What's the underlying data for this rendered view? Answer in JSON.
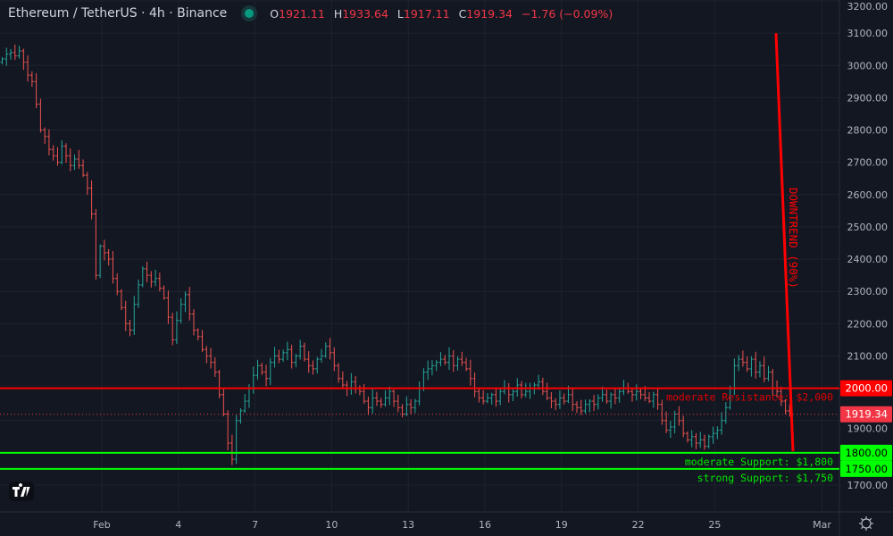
{
  "header": {
    "symbol": "Ethereum / TetherUS · 4h · Binance",
    "market_status_color": "#089981",
    "open_label": "O",
    "open": "1921.11",
    "high_label": "H",
    "high": "1933.64",
    "low_label": "L",
    "low": "1917.11",
    "close_label": "C",
    "close": "1919.34",
    "change": "−1.76 (−0.09%)"
  },
  "chart_data": {
    "type": "ohlc",
    "interval": "4h",
    "ylim": [
      1700,
      3200
    ],
    "y_ticks": [
      "3200.00",
      "3100.00",
      "3000.00",
      "2900.00",
      "2800.00",
      "2700.00",
      "2600.00",
      "2500.00",
      "2400.00",
      "2300.00",
      "2200.00",
      "2100.00",
      "2000.00",
      "1900.00",
      "1800.00",
      "1700.00"
    ],
    "x_ticks": [
      "Feb",
      "4",
      "7",
      "10",
      "13",
      "16",
      "19",
      "22",
      "25",
      "Mar"
    ],
    "grid": true,
    "colors": {
      "up": "#26a69a",
      "down": "#ef5350",
      "background": "#131722",
      "resistance": "#ff0000",
      "support": "#00ff00"
    },
    "close": [
      3020,
      3035,
      3040,
      3030,
      3045,
      3010,
      2970,
      2950,
      2880,
      2800,
      2780,
      2740,
      2720,
      2700,
      2750,
      2720,
      2690,
      2710,
      2690,
      2660,
      2620,
      2540,
      2350,
      2440,
      2420,
      2400,
      2340,
      2300,
      2250,
      2200,
      2180,
      2260,
      2320,
      2370,
      2350,
      2330,
      2340,
      2310,
      2280,
      2220,
      2150,
      2210,
      2260,
      2290,
      2230,
      2180,
      2160,
      2120,
      2100,
      2080,
      2050,
      1980,
      1920,
      1830,
      1780,
      1900,
      1930,
      1960,
      2000,
      2040,
      2070,
      2050,
      2030,
      2080,
      2100,
      2090,
      2110,
      2120,
      2080,
      2100,
      2130,
      2090,
      2070,
      2060,
      2090,
      2100,
      2130,
      2110,
      2070,
      2030,
      2010,
      2000,
      2020,
      2000,
      1990,
      1960,
      1940,
      1970,
      1960,
      1950,
      1970,
      1990,
      1960,
      1940,
      1920,
      1950,
      1940,
      1960,
      2000,
      2050,
      2060,
      2070,
      2080,
      2090,
      2080,
      2100,
      2070,
      2090,
      2080,
      2060,
      2030,
      1990,
      1970,
      1960,
      1970,
      1980,
      1960,
      1990,
      2000,
      1980,
      1990,
      2010,
      1980,
      1990,
      2000,
      2010,
      2020,
      1990,
      1970,
      1960,
      1950,
      1970,
      1960,
      1980,
      1950,
      1940,
      1930,
      1950,
      1960,
      1950,
      1970,
      1980,
      1960,
      1980,
      1970,
      1990,
      2000,
      1990,
      1980,
      1990,
      1980,
      1970,
      1960,
      1980,
      1950,
      1900,
      1870,
      1880,
      1920,
      1900,
      1860,
      1840,
      1850,
      1830,
      1840,
      1820,
      1850,
      1860,
      1870,
      1900,
      1940,
      2000,
      2070,
      2090,
      2080,
      2060,
      2090,
      2050,
      2070,
      2030,
      2050,
      2000,
      1990,
      1960,
      1930,
      1919.34
    ],
    "last_price": 1919.34,
    "last_price_label": "1919.34",
    "levels": [
      {
        "price": 2000,
        "tag": "2000.00",
        "label": "moderate Resistance: $2,000",
        "color": "#ff0000"
      },
      {
        "price": 1800,
        "tag": "1800.00",
        "label": "moderate Support: $1,800",
        "color": "#00ff00"
      },
      {
        "price": 1750,
        "tag": "1750.00",
        "label": "strong Support: $1,750",
        "color": "#00ff00"
      }
    ],
    "trendline": {
      "label": "DOWNTREND (90%)",
      "from_price": 3100,
      "to_price": 1805,
      "color": "#ff0000"
    }
  },
  "footer": {
    "logo_icon": "tradingview-logo",
    "settings_icon": "gear-icon"
  }
}
